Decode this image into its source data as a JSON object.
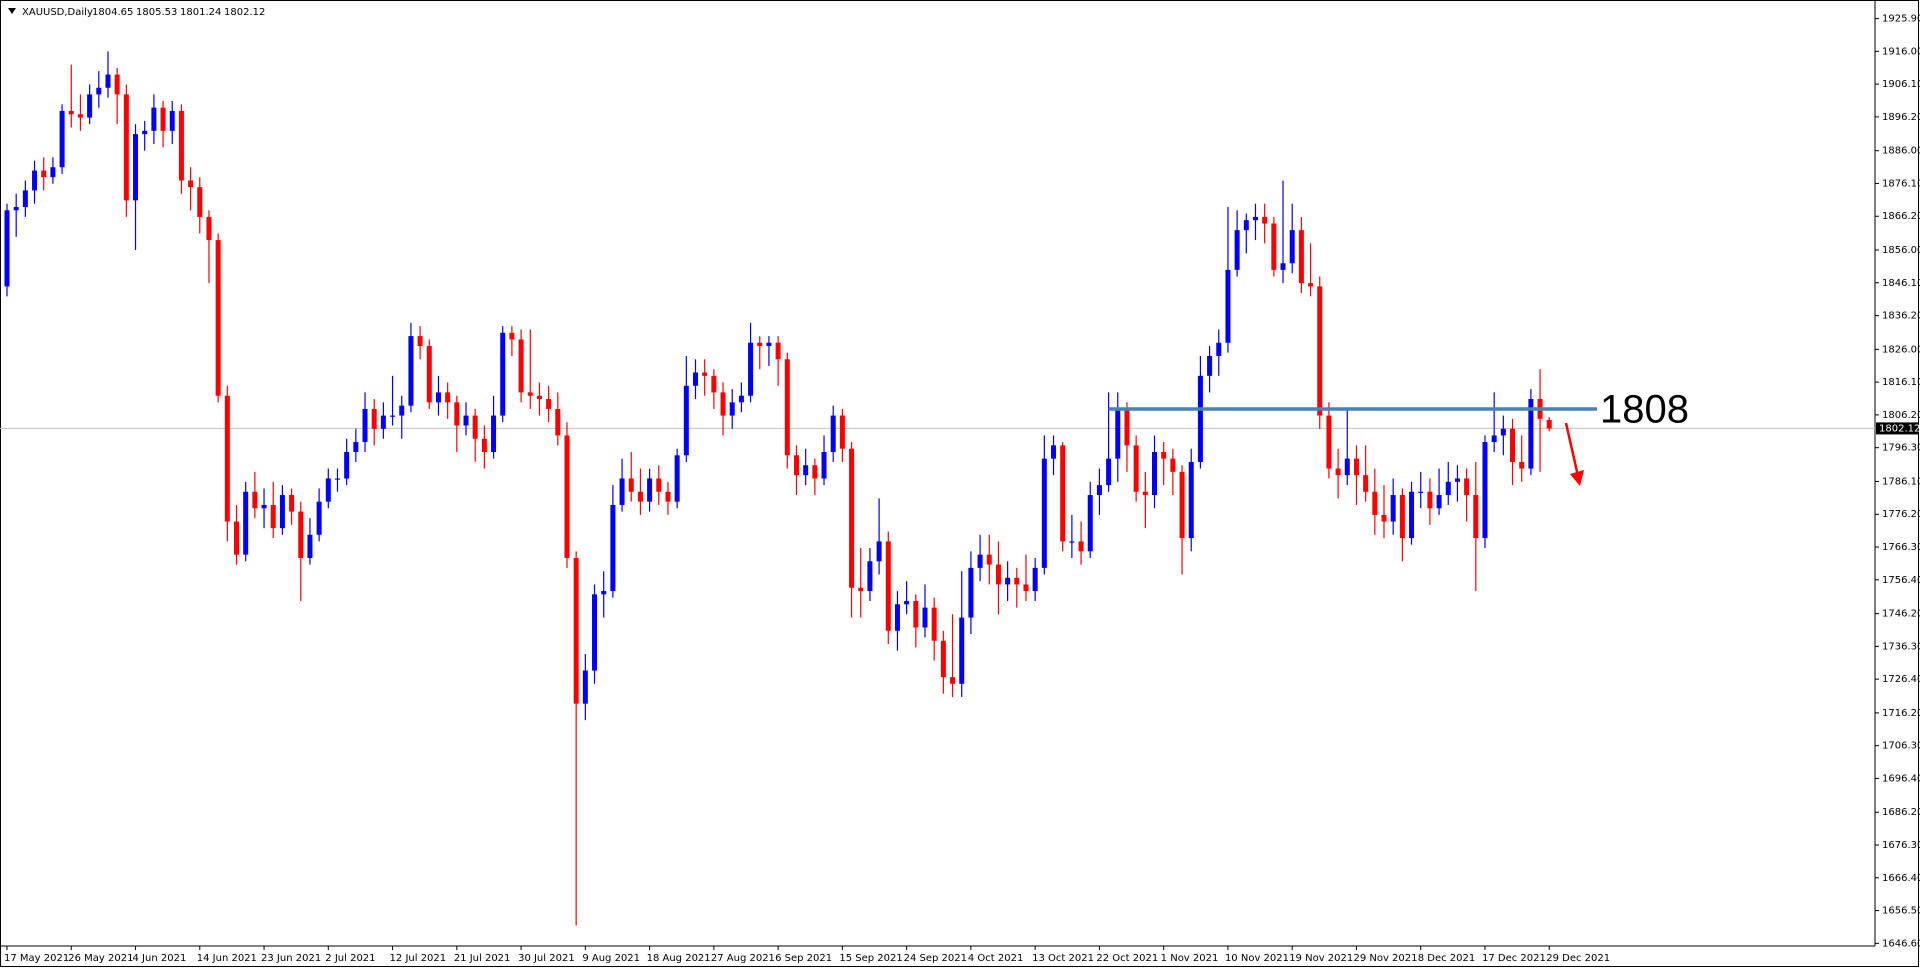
{
  "chart_data": {
    "type": "candlestick",
    "symbol": "XAUUSD,Daily",
    "up_color": "#0000ff",
    "down_color": "#ff0000",
    "level": 1808,
    "level_color": "#4682b4",
    "level_label_color": "#ff0000",
    "ylim": [
      1645.8,
      1930.0
    ],
    "yticks": [
      {
        "value": 1925.9,
        "label": "1925.90"
      },
      {
        "value": 1916,
        "label": "1916.00"
      },
      {
        "value": 1906.1,
        "label": "1906.10"
      },
      {
        "value": 1896.2,
        "label": "1896.20"
      },
      {
        "value": 1886,
        "label": "1886.00"
      },
      {
        "value": 1876.1,
        "label": "1876.10"
      },
      {
        "value": 1866.2,
        "label": "1866.20"
      },
      {
        "value": 1856,
        "label": "1856.00"
      },
      {
        "value": 1846.1,
        "label": "1846.10"
      },
      {
        "value": 1836.2,
        "label": "1836.20"
      },
      {
        "value": 1826,
        "label": "1826.00"
      },
      {
        "value": 1816.1,
        "label": "1816.10"
      },
      {
        "value": 1806.2,
        "label": "1806.20"
      },
      {
        "value": 1796.3,
        "label": "1796.30"
      },
      {
        "value": 1786.1,
        "label": "1786.10"
      },
      {
        "value": 1776.2,
        "label": "1776.20"
      },
      {
        "value": 1766.3,
        "label": "1766.30"
      },
      {
        "value": 1756.4,
        "label": "1756.40"
      },
      {
        "value": 1746.2,
        "label": "1746.20"
      },
      {
        "value": 1736.3,
        "label": "1736.30"
      },
      {
        "value": 1726.4,
        "label": "1726.40"
      },
      {
        "value": 1716.2,
        "label": "1716.20"
      },
      {
        "value": 1706.3,
        "label": "1706.30"
      },
      {
        "value": 1696.4,
        "label": "1696.40"
      },
      {
        "value": 1686.2,
        "label": "1686.20"
      },
      {
        "value": 1676.3,
        "label": "1676.30"
      },
      {
        "value": 1666.4,
        "label": "1666.40"
      },
      {
        "value": 1656.5,
        "label": "1656.50"
      },
      {
        "value": 1646.6,
        "label": "1646.60"
      }
    ],
    "categories": [
      "17 May 2021",
      null,
      null,
      null,
      null,
      null,
      null,
      "26 May 2021",
      null,
      null,
      null,
      null,
      null,
      null,
      "4 Jun 2021",
      null,
      null,
      null,
      null,
      null,
      null,
      "14 Jun 2021",
      null,
      null,
      null,
      null,
      null,
      null,
      "23 Jun 2021",
      null,
      null,
      null,
      null,
      null,
      null,
      "2 Jul 2021",
      null,
      null,
      null,
      null,
      null,
      null,
      "12 Jul 2021",
      null,
      null,
      null,
      null,
      null,
      null,
      "21 Jul 2021",
      null,
      null,
      null,
      null,
      null,
      null,
      "30 Jul 2021",
      null,
      null,
      null,
      null,
      null,
      null,
      "9 Aug 2021",
      null,
      null,
      null,
      null,
      null,
      null,
      "18 Aug 2021",
      null,
      null,
      null,
      null,
      null,
      null,
      "27 Aug 2021",
      null,
      null,
      null,
      null,
      null,
      null,
      "6 Sep 2021",
      null,
      null,
      null,
      null,
      null,
      null,
      "15 Sep 2021",
      null,
      null,
      null,
      null,
      null,
      null,
      "24 Sep 2021",
      null,
      null,
      null,
      null,
      null,
      null,
      "4 Oct 2021",
      null,
      null,
      null,
      null,
      null,
      null,
      "13 Oct 2021",
      null,
      null,
      null,
      null,
      null,
      null,
      "22 Oct 2021",
      null,
      null,
      null,
      null,
      null,
      null,
      "1 Nov 2021",
      null,
      null,
      null,
      null,
      null,
      null,
      "10 Nov 2021",
      null,
      null,
      null,
      null,
      null,
      null,
      "19 Nov 2021",
      null,
      null,
      null,
      null,
      null,
      null,
      "29 Nov 2021",
      null,
      null,
      null,
      null,
      null,
      null,
      "8 Dec 2021",
      null,
      null,
      null,
      null,
      null,
      null,
      "17 Dec 2021",
      null,
      null,
      null,
      null,
      null,
      null,
      "29 Dec 2021"
    ],
    "ohlc": [
      [
        1845,
        1870,
        1842,
        1868
      ],
      [
        1868,
        1873,
        1860,
        1869
      ],
      [
        1869,
        1877,
        1866,
        1874
      ],
      [
        1874,
        1883,
        1870,
        1880
      ],
      [
        1880,
        1884,
        1874,
        1878
      ],
      [
        1878,
        1884,
        1876,
        1881
      ],
      [
        1881,
        1900,
        1879,
        1898
      ],
      [
        1898,
        1912,
        1893,
        1897
      ],
      [
        1897,
        1903,
        1892,
        1896
      ],
      [
        1896,
        1906,
        1894,
        1903
      ],
      [
        1903,
        1910,
        1899,
        1905
      ],
      [
        1905,
        1916,
        1902,
        1909
      ],
      [
        1909,
        1911,
        1894,
        1903
      ],
      [
        1903,
        1906,
        1866,
        1871
      ],
      [
        1871,
        1894,
        1856,
        1891
      ],
      [
        1891,
        1895,
        1886,
        1892
      ],
      [
        1892,
        1903,
        1888,
        1899
      ],
      [
        1899,
        1901,
        1887,
        1892
      ],
      [
        1892,
        1901,
        1888,
        1898
      ],
      [
        1898,
        1900,
        1873,
        1877
      ],
      [
        1877,
        1881,
        1868,
        1875
      ],
      [
        1875,
        1878,
        1861,
        1866
      ],
      [
        1866,
        1868,
        1846,
        1859
      ],
      [
        1859,
        1861,
        1810,
        1812
      ],
      [
        1812,
        1815,
        1768,
        1774
      ],
      [
        1774,
        1779,
        1761,
        1764
      ],
      [
        1764,
        1786,
        1762,
        1783
      ],
      [
        1783,
        1789,
        1775,
        1778
      ],
      [
        1778,
        1784,
        1772,
        1779
      ],
      [
        1779,
        1786,
        1769,
        1772
      ],
      [
        1772,
        1785,
        1770,
        1782
      ],
      [
        1782,
        1784,
        1773,
        1777
      ],
      [
        1777,
        1780,
        1750,
        1763
      ],
      [
        1763,
        1775,
        1761,
        1770
      ],
      [
        1770,
        1784,
        1768,
        1780
      ],
      [
        1780,
        1790,
        1778,
        1787
      ],
      [
        1787,
        1790,
        1783,
        1787
      ],
      [
        1787,
        1799,
        1785,
        1795
      ],
      [
        1795,
        1802,
        1792,
        1798
      ],
      [
        1798,
        1813,
        1795,
        1808
      ],
      [
        1808,
        1811,
        1797,
        1802
      ],
      [
        1802,
        1810,
        1799,
        1806
      ],
      [
        1806,
        1818,
        1803,
        1806
      ],
      [
        1806,
        1812,
        1799,
        1809
      ],
      [
        1809,
        1834,
        1807,
        1830
      ],
      [
        1830,
        1833,
        1823,
        1827
      ],
      [
        1827,
        1829,
        1808,
        1810
      ],
      [
        1810,
        1818,
        1806,
        1813
      ],
      [
        1813,
        1816,
        1805,
        1810
      ],
      [
        1810,
        1812,
        1795,
        1803
      ],
      [
        1803,
        1810,
        1800,
        1806
      ],
      [
        1806,
        1808,
        1792,
        1799
      ],
      [
        1799,
        1803,
        1790,
        1795
      ],
      [
        1795,
        1812,
        1793,
        1806
      ],
      [
        1806,
        1833,
        1804,
        1831
      ],
      [
        1831,
        1833,
        1824,
        1829
      ],
      [
        1829,
        1832,
        1810,
        1813
      ],
      [
        1813,
        1832,
        1808,
        1812
      ],
      [
        1812,
        1816,
        1806,
        1811
      ],
      [
        1811,
        1815,
        1804,
        1808
      ],
      [
        1808,
        1813,
        1797,
        1800
      ],
      [
        1800,
        1804,
        1760,
        1763
      ],
      [
        1763,
        1765,
        1652,
        1719
      ],
      [
        1719,
        1734,
        1714,
        1729
      ],
      [
        1729,
        1755,
        1725,
        1752
      ],
      [
        1752,
        1759,
        1745,
        1753
      ],
      [
        1753,
        1785,
        1751,
        1779
      ],
      [
        1779,
        1793,
        1777,
        1787
      ],
      [
        1787,
        1795,
        1780,
        1783
      ],
      [
        1783,
        1790,
        1776,
        1780
      ],
      [
        1780,
        1790,
        1777,
        1787
      ],
      [
        1787,
        1791,
        1779,
        1783
      ],
      [
        1783,
        1786,
        1776,
        1780
      ],
      [
        1780,
        1796,
        1778,
        1794
      ],
      [
        1794,
        1824,
        1792,
        1815
      ],
      [
        1815,
        1823,
        1811,
        1819
      ],
      [
        1819,
        1823,
        1812,
        1818
      ],
      [
        1818,
        1820,
        1808,
        1813
      ],
      [
        1813,
        1816,
        1800,
        1806
      ],
      [
        1806,
        1814,
        1802,
        1810
      ],
      [
        1810,
        1816,
        1807,
        1812
      ],
      [
        1812,
        1834,
        1810,
        1828
      ],
      [
        1828,
        1830,
        1820,
        1827
      ],
      [
        1827,
        1830,
        1821,
        1828
      ],
      [
        1828,
        1830,
        1815,
        1823
      ],
      [
        1823,
        1825,
        1790,
        1794
      ],
      [
        1794,
        1797,
        1782,
        1788
      ],
      [
        1788,
        1796,
        1785,
        1791
      ],
      [
        1791,
        1793,
        1782,
        1787
      ],
      [
        1787,
        1800,
        1785,
        1795
      ],
      [
        1795,
        1809,
        1792,
        1806
      ],
      [
        1806,
        1808,
        1792,
        1796
      ],
      [
        1796,
        1798,
        1745,
        1754
      ],
      [
        1754,
        1766,
        1745,
        1753
      ],
      [
        1753,
        1766,
        1750,
        1762
      ],
      [
        1762,
        1781,
        1758,
        1768
      ],
      [
        1768,
        1771,
        1737,
        1741
      ],
      [
        1741,
        1753,
        1735,
        1749
      ],
      [
        1749,
        1756,
        1746,
        1750
      ],
      [
        1750,
        1752,
        1736,
        1742
      ],
      [
        1742,
        1755,
        1739,
        1748
      ],
      [
        1748,
        1751,
        1732,
        1738
      ],
      [
        1738,
        1741,
        1722,
        1727
      ],
      [
        1727,
        1746,
        1721,
        1725
      ],
      [
        1725,
        1759,
        1721,
        1745
      ],
      [
        1745,
        1765,
        1740,
        1760
      ],
      [
        1760,
        1770,
        1756,
        1764
      ],
      [
        1764,
        1770,
        1755,
        1761
      ],
      [
        1761,
        1768,
        1746,
        1755
      ],
      [
        1755,
        1762,
        1750,
        1757
      ],
      [
        1757,
        1760,
        1748,
        1755
      ],
      [
        1755,
        1764,
        1750,
        1753
      ],
      [
        1753,
        1763,
        1750,
        1760
      ],
      [
        1760,
        1800,
        1758,
        1793
      ],
      [
        1793,
        1800,
        1788,
        1797
      ],
      [
        1797,
        1798,
        1765,
        1768
      ],
      [
        1768,
        1776,
        1763,
        1768
      ],
      [
        1768,
        1774,
        1761,
        1765
      ],
      [
        1765,
        1786,
        1763,
        1782
      ],
      [
        1782,
        1790,
        1776,
        1785
      ],
      [
        1785,
        1813,
        1783,
        1793
      ],
      [
        1793,
        1813,
        1786,
        1808
      ],
      [
        1808,
        1810,
        1789,
        1797
      ],
      [
        1797,
        1800,
        1780,
        1783
      ],
      [
        1783,
        1789,
        1772,
        1782
      ],
      [
        1782,
        1800,
        1778,
        1795
      ],
      [
        1795,
        1798,
        1785,
        1793
      ],
      [
        1793,
        1796,
        1782,
        1789
      ],
      [
        1789,
        1791,
        1758,
        1769
      ],
      [
        1769,
        1796,
        1765,
        1792
      ],
      [
        1792,
        1824,
        1790,
        1818
      ],
      [
        1818,
        1827,
        1813,
        1824
      ],
      [
        1824,
        1832,
        1818,
        1828
      ],
      [
        1828,
        1869,
        1825,
        1850
      ],
      [
        1850,
        1868,
        1848,
        1862
      ],
      [
        1862,
        1867,
        1855,
        1865
      ],
      [
        1865,
        1870,
        1859,
        1866
      ],
      [
        1866,
        1870,
        1858,
        1864
      ],
      [
        1864,
        1866,
        1848,
        1850
      ],
      [
        1850,
        1877,
        1846,
        1852
      ],
      [
        1852,
        1870,
        1849,
        1862
      ],
      [
        1862,
        1866,
        1843,
        1846
      ],
      [
        1846,
        1858,
        1842,
        1845
      ],
      [
        1845,
        1848,
        1802,
        1806
      ],
      [
        1806,
        1810,
        1787,
        1790
      ],
      [
        1790,
        1796,
        1781,
        1788
      ],
      [
        1788,
        1808,
        1785,
        1793
      ],
      [
        1793,
        1797,
        1779,
        1788
      ],
      [
        1788,
        1797,
        1780,
        1783
      ],
      [
        1783,
        1790,
        1770,
        1776
      ],
      [
        1776,
        1785,
        1769,
        1774
      ],
      [
        1774,
        1787,
        1770,
        1782
      ],
      [
        1782,
        1784,
        1762,
        1769
      ],
      [
        1769,
        1786,
        1767,
        1783
      ],
      [
        1783,
        1789,
        1778,
        1783
      ],
      [
        1783,
        1787,
        1773,
        1778
      ],
      [
        1778,
        1790,
        1776,
        1782
      ],
      [
        1782,
        1792,
        1779,
        1786
      ],
      [
        1786,
        1791,
        1780,
        1787
      ],
      [
        1787,
        1790,
        1774,
        1782
      ],
      [
        1782,
        1792,
        1753,
        1769
      ],
      [
        1769,
        1800,
        1766,
        1798
      ],
      [
        1798,
        1813,
        1795,
        1800
      ],
      [
        1800,
        1806,
        1794,
        1802
      ],
      [
        1802,
        1805,
        1785,
        1792
      ],
      [
        1792,
        1800,
        1786,
        1790
      ],
      [
        1790,
        1814,
        1788,
        1811
      ],
      [
        1811,
        1820,
        1789,
        1805
      ],
      [
        1804.65,
        1805.53,
        1801.24,
        1802.12
      ]
    ]
  }
}
